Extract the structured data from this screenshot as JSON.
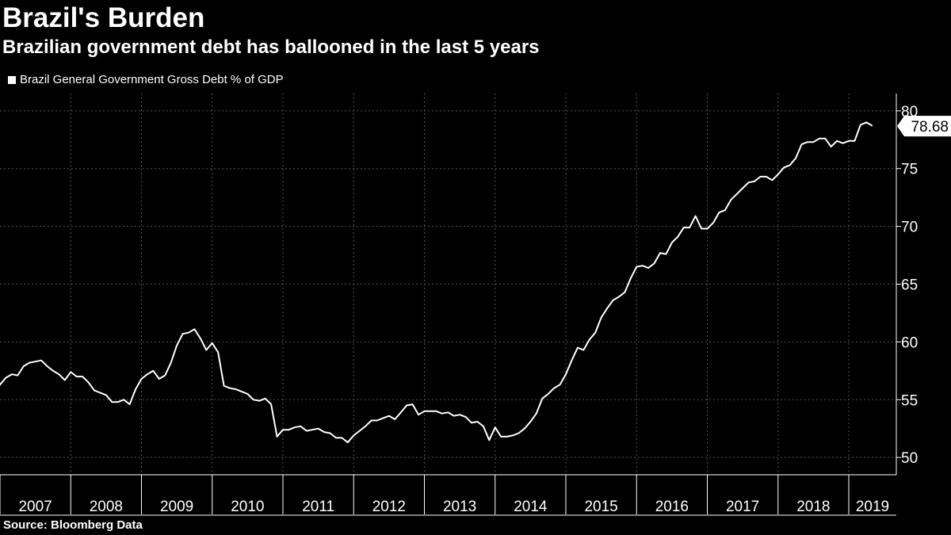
{
  "header": {
    "title": "Brazil's Burden",
    "subtitle": "Brazilian government debt has ballooned in the last 5 years"
  },
  "legend": {
    "label": "Brazil General Government Gross Debt % of GDP"
  },
  "footer": {
    "source": "Source: Bloomberg Data"
  },
  "colors": {
    "background": "#000000",
    "line": "#ffffff",
    "grid": "#555555"
  },
  "chart_data": {
    "type": "line",
    "title": "Brazil's Burden",
    "subtitle": "Brazilian government debt has ballooned in the last 5 years",
    "series": [
      {
        "name": "Brazil General Government Gross Debt % of GDP",
        "last_value_label": "78.68",
        "points": [
          [
            "2006-12",
            55.5
          ],
          [
            "2007-01",
            56.3
          ],
          [
            "2007-02",
            56.9
          ],
          [
            "2007-03",
            57.2
          ],
          [
            "2007-04",
            57.1
          ],
          [
            "2007-05",
            57.9
          ],
          [
            "2007-06",
            58.2
          ],
          [
            "2007-07",
            58.3
          ],
          [
            "2007-08",
            58.4
          ],
          [
            "2007-09",
            57.9
          ],
          [
            "2007-10",
            57.5
          ],
          [
            "2007-11",
            57.2
          ],
          [
            "2007-12",
            56.7
          ],
          [
            "2008-01",
            57.4
          ],
          [
            "2008-02",
            57.0
          ],
          [
            "2008-03",
            57.0
          ],
          [
            "2008-04",
            56.5
          ],
          [
            "2008-05",
            55.8
          ],
          [
            "2008-06",
            55.6
          ],
          [
            "2008-07",
            55.4
          ],
          [
            "2008-08",
            54.8
          ],
          [
            "2008-09",
            54.8
          ],
          [
            "2008-10",
            55.0
          ],
          [
            "2008-11",
            54.6
          ],
          [
            "2008-12",
            55.9
          ],
          [
            "2009-01",
            56.8
          ],
          [
            "2009-02",
            57.2
          ],
          [
            "2009-03",
            57.5
          ],
          [
            "2009-04",
            56.8
          ],
          [
            "2009-05",
            57.1
          ],
          [
            "2009-06",
            58.2
          ],
          [
            "2009-07",
            59.7
          ],
          [
            "2009-08",
            60.7
          ],
          [
            "2009-09",
            60.8
          ],
          [
            "2009-10",
            61.1
          ],
          [
            "2009-11",
            60.3
          ],
          [
            "2009-12",
            59.3
          ],
          [
            "2010-01",
            59.9
          ],
          [
            "2010-02",
            59.1
          ],
          [
            "2010-03",
            56.2
          ],
          [
            "2010-04",
            56.0
          ],
          [
            "2010-05",
            55.9
          ],
          [
            "2010-06",
            55.7
          ],
          [
            "2010-07",
            55.5
          ],
          [
            "2010-08",
            55.0
          ],
          [
            "2010-09",
            54.9
          ],
          [
            "2010-10",
            55.1
          ],
          [
            "2010-11",
            54.6
          ],
          [
            "2010-12",
            51.8
          ],
          [
            "2011-01",
            52.4
          ],
          [
            "2011-02",
            52.4
          ],
          [
            "2011-03",
            52.6
          ],
          [
            "2011-04",
            52.7
          ],
          [
            "2011-05",
            52.3
          ],
          [
            "2011-06",
            52.4
          ],
          [
            "2011-07",
            52.5
          ],
          [
            "2011-08",
            52.2
          ],
          [
            "2011-09",
            52.1
          ],
          [
            "2011-10",
            51.7
          ],
          [
            "2011-11",
            51.7
          ],
          [
            "2011-12",
            51.3
          ],
          [
            "2012-01",
            51.9
          ],
          [
            "2012-02",
            52.3
          ],
          [
            "2012-03",
            52.7
          ],
          [
            "2012-04",
            53.2
          ],
          [
            "2012-05",
            53.2
          ],
          [
            "2012-06",
            53.4
          ],
          [
            "2012-07",
            53.6
          ],
          [
            "2012-08",
            53.3
          ],
          [
            "2012-09",
            53.9
          ],
          [
            "2012-10",
            54.5
          ],
          [
            "2012-11",
            54.6
          ],
          [
            "2012-12",
            53.7
          ],
          [
            "2013-01",
            54.0
          ],
          [
            "2013-02",
            54.0
          ],
          [
            "2013-03",
            54.0
          ],
          [
            "2013-04",
            53.8
          ],
          [
            "2013-05",
            53.9
          ],
          [
            "2013-06",
            53.6
          ],
          [
            "2013-07",
            53.7
          ],
          [
            "2013-08",
            53.5
          ],
          [
            "2013-09",
            53.0
          ],
          [
            "2013-10",
            53.1
          ],
          [
            "2013-11",
            52.7
          ],
          [
            "2013-12",
            51.5
          ],
          [
            "2014-01",
            52.6
          ],
          [
            "2014-02",
            51.8
          ],
          [
            "2014-03",
            51.8
          ],
          [
            "2014-04",
            51.9
          ],
          [
            "2014-05",
            52.1
          ],
          [
            "2014-06",
            52.5
          ],
          [
            "2014-07",
            53.1
          ],
          [
            "2014-08",
            53.8
          ],
          [
            "2014-09",
            55.1
          ],
          [
            "2014-10",
            55.5
          ],
          [
            "2014-11",
            56.0
          ],
          [
            "2014-12",
            56.3
          ],
          [
            "2015-01",
            57.2
          ],
          [
            "2015-02",
            58.4
          ],
          [
            "2015-03",
            59.5
          ],
          [
            "2015-04",
            59.3
          ],
          [
            "2015-05",
            60.2
          ],
          [
            "2015-06",
            60.8
          ],
          [
            "2015-07",
            62.1
          ],
          [
            "2015-08",
            62.9
          ],
          [
            "2015-09",
            63.6
          ],
          [
            "2015-10",
            63.9
          ],
          [
            "2015-11",
            64.3
          ],
          [
            "2015-12",
            65.5
          ],
          [
            "2016-01",
            66.5
          ],
          [
            "2016-02",
            66.6
          ],
          [
            "2016-03",
            66.4
          ],
          [
            "2016-04",
            66.8
          ],
          [
            "2016-05",
            67.7
          ],
          [
            "2016-06",
            67.6
          ],
          [
            "2016-07",
            68.6
          ],
          [
            "2016-08",
            69.1
          ],
          [
            "2016-09",
            69.9
          ],
          [
            "2016-10",
            69.9
          ],
          [
            "2016-11",
            70.9
          ],
          [
            "2016-12",
            69.8
          ],
          [
            "2017-01",
            69.8
          ],
          [
            "2017-02",
            70.3
          ],
          [
            "2017-03",
            71.2
          ],
          [
            "2017-04",
            71.4
          ],
          [
            "2017-05",
            72.3
          ],
          [
            "2017-06",
            72.8
          ],
          [
            "2017-07",
            73.3
          ],
          [
            "2017-08",
            73.8
          ],
          [
            "2017-09",
            73.9
          ],
          [
            "2017-10",
            74.3
          ],
          [
            "2017-11",
            74.3
          ],
          [
            "2017-12",
            74.0
          ],
          [
            "2018-01",
            74.5
          ],
          [
            "2018-02",
            75.1
          ],
          [
            "2018-03",
            75.3
          ],
          [
            "2018-04",
            75.9
          ],
          [
            "2018-05",
            77.1
          ],
          [
            "2018-06",
            77.3
          ],
          [
            "2018-07",
            77.3
          ],
          [
            "2018-08",
            77.6
          ],
          [
            "2018-09",
            77.6
          ],
          [
            "2018-10",
            76.9
          ],
          [
            "2018-11",
            77.4
          ],
          [
            "2018-12",
            77.2
          ],
          [
            "2019-01",
            77.4
          ],
          [
            "2019-02",
            77.4
          ],
          [
            "2019-03",
            78.8
          ],
          [
            "2019-04",
            79.0
          ],
          [
            "2019-05",
            78.7
          ]
        ]
      }
    ],
    "xlabels": [
      "2007",
      "2008",
      "2009",
      "2010",
      "2011",
      "2012",
      "2013",
      "2014",
      "2015",
      "2016",
      "2017",
      "2018",
      "2019"
    ],
    "yticks": [
      50,
      55,
      60,
      65,
      70,
      75,
      80
    ],
    "ylim": [
      48.5,
      81.5
    ],
    "y_axis_side": "right",
    "grid": true,
    "legend_position": "top-left",
    "source": "Source: Bloomberg Data"
  }
}
